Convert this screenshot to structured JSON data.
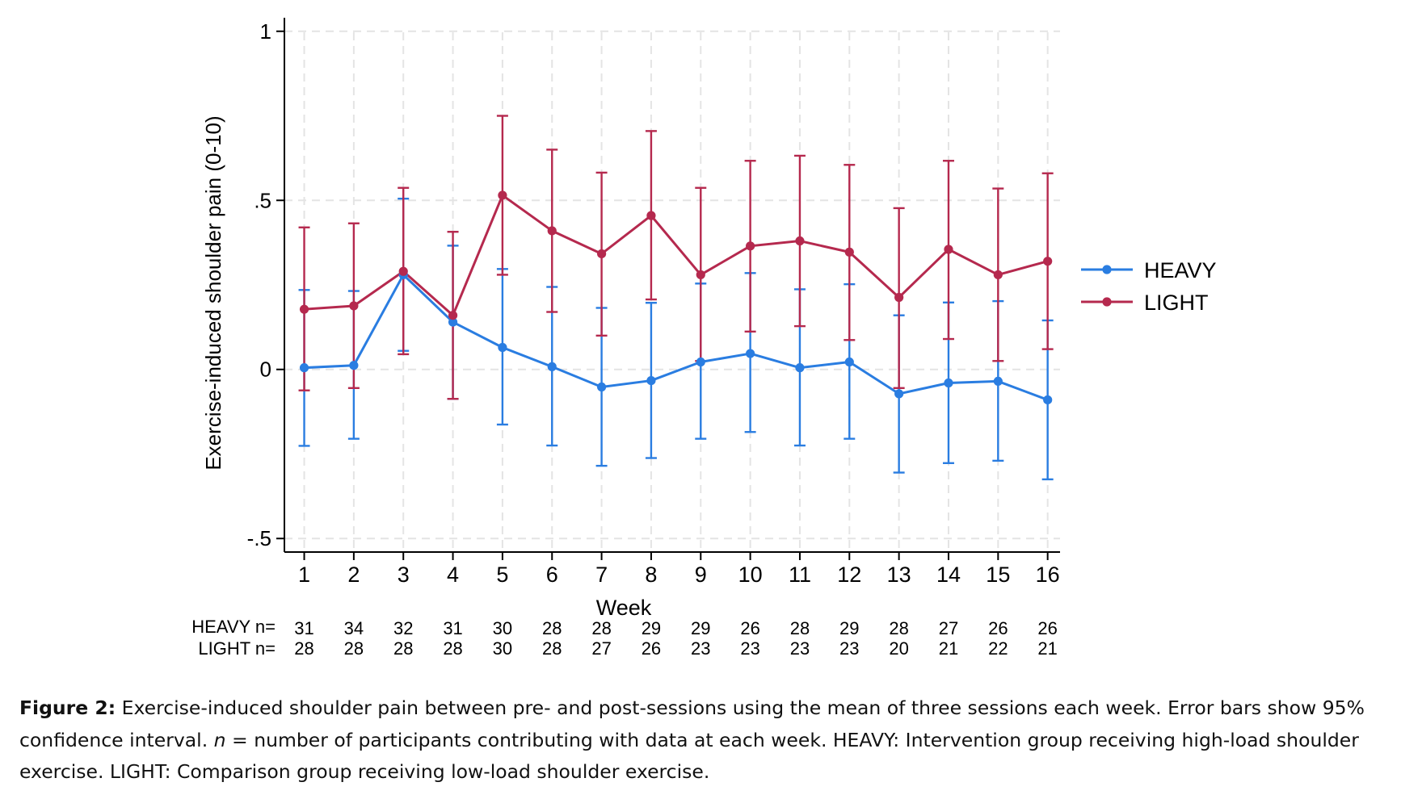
{
  "chart_data": {
    "type": "line",
    "title": "",
    "xlabel": "Week",
    "ylabel": "Exercise-induced shoulder pain (0-10)",
    "xlim": [
      0.6,
      16.25
    ],
    "ylim": [
      -0.54,
      1.04
    ],
    "x": [
      1,
      2,
      3,
      4,
      5,
      6,
      7,
      8,
      9,
      10,
      11,
      12,
      13,
      14,
      15,
      16
    ],
    "xtick_labels": [
      "1",
      "2",
      "3",
      "4",
      "5",
      "6",
      "7",
      "8",
      "9",
      "10",
      "11",
      "12",
      "13",
      "14",
      "15",
      "16"
    ],
    "yticks": [
      -0.5,
      0,
      0.5,
      1
    ],
    "ytick_labels": [
      "-.5",
      "0",
      ".5",
      "1"
    ],
    "grid": true,
    "legend_position": "right",
    "series": [
      {
        "name": "HEAVY",
        "color": "#2a7de1",
        "values": [
          0.005,
          0.012,
          0.28,
          0.14,
          0.065,
          0.008,
          -0.052,
          -0.033,
          0.022,
          0.047,
          0.005,
          0.022,
          -0.072,
          -0.04,
          -0.035,
          -0.09
        ],
        "ci_lower": [
          -0.226,
          -0.205,
          0.055,
          -0.087,
          -0.163,
          -0.225,
          -0.285,
          -0.262,
          -0.205,
          -0.185,
          -0.225,
          -0.205,
          -0.305,
          -0.277,
          -0.27,
          -0.325
        ],
        "ci_upper": [
          0.235,
          0.232,
          0.505,
          0.366,
          0.297,
          0.244,
          0.182,
          0.197,
          0.254,
          0.285,
          0.237,
          0.252,
          0.16,
          0.198,
          0.202,
          0.145
        ],
        "n": [
          "31",
          "34",
          "32",
          "31",
          "30",
          "28",
          "28",
          "29",
          "29",
          "26",
          "28",
          "29",
          "28",
          "27",
          "26",
          "26"
        ]
      },
      {
        "name": "LIGHT",
        "color": "#b5294e",
        "values": [
          0.178,
          0.188,
          0.29,
          0.16,
          0.515,
          0.41,
          0.342,
          0.455,
          0.28,
          0.365,
          0.38,
          0.347,
          0.213,
          0.355,
          0.28,
          0.32
        ],
        "ci_lower": [
          -0.062,
          -0.055,
          0.045,
          -0.087,
          0.28,
          0.17,
          0.1,
          0.207,
          0.025,
          0.112,
          0.128,
          0.087,
          -0.055,
          0.09,
          0.025,
          0.06
        ],
        "ci_upper": [
          0.42,
          0.432,
          0.537,
          0.407,
          0.75,
          0.65,
          0.582,
          0.705,
          0.537,
          0.617,
          0.632,
          0.605,
          0.477,
          0.617,
          0.535,
          0.58
        ],
        "n": [
          "28",
          "28",
          "28",
          "28",
          "30",
          "28",
          "27",
          "26",
          "23",
          "23",
          "23",
          "23",
          "20",
          "21",
          "22",
          "21"
        ]
      }
    ],
    "n_table": {
      "heavy_label": "HEAVY n=",
      "light_label": "LIGHT  n="
    }
  },
  "caption": {
    "label": "Figure 2:",
    "text_part1": " Exercise-induced shoulder pain between pre- and post-sessions using the mean of three sessions each week. Error bars show 95% confidence interval. ",
    "n_symbol": "n",
    "text_part2": " = number of participants contributing with data at each week. HEAVY: Intervention group receiving high-load shoulder exercise. LIGHT: Comparison group receiving low-load shoulder exercise."
  }
}
